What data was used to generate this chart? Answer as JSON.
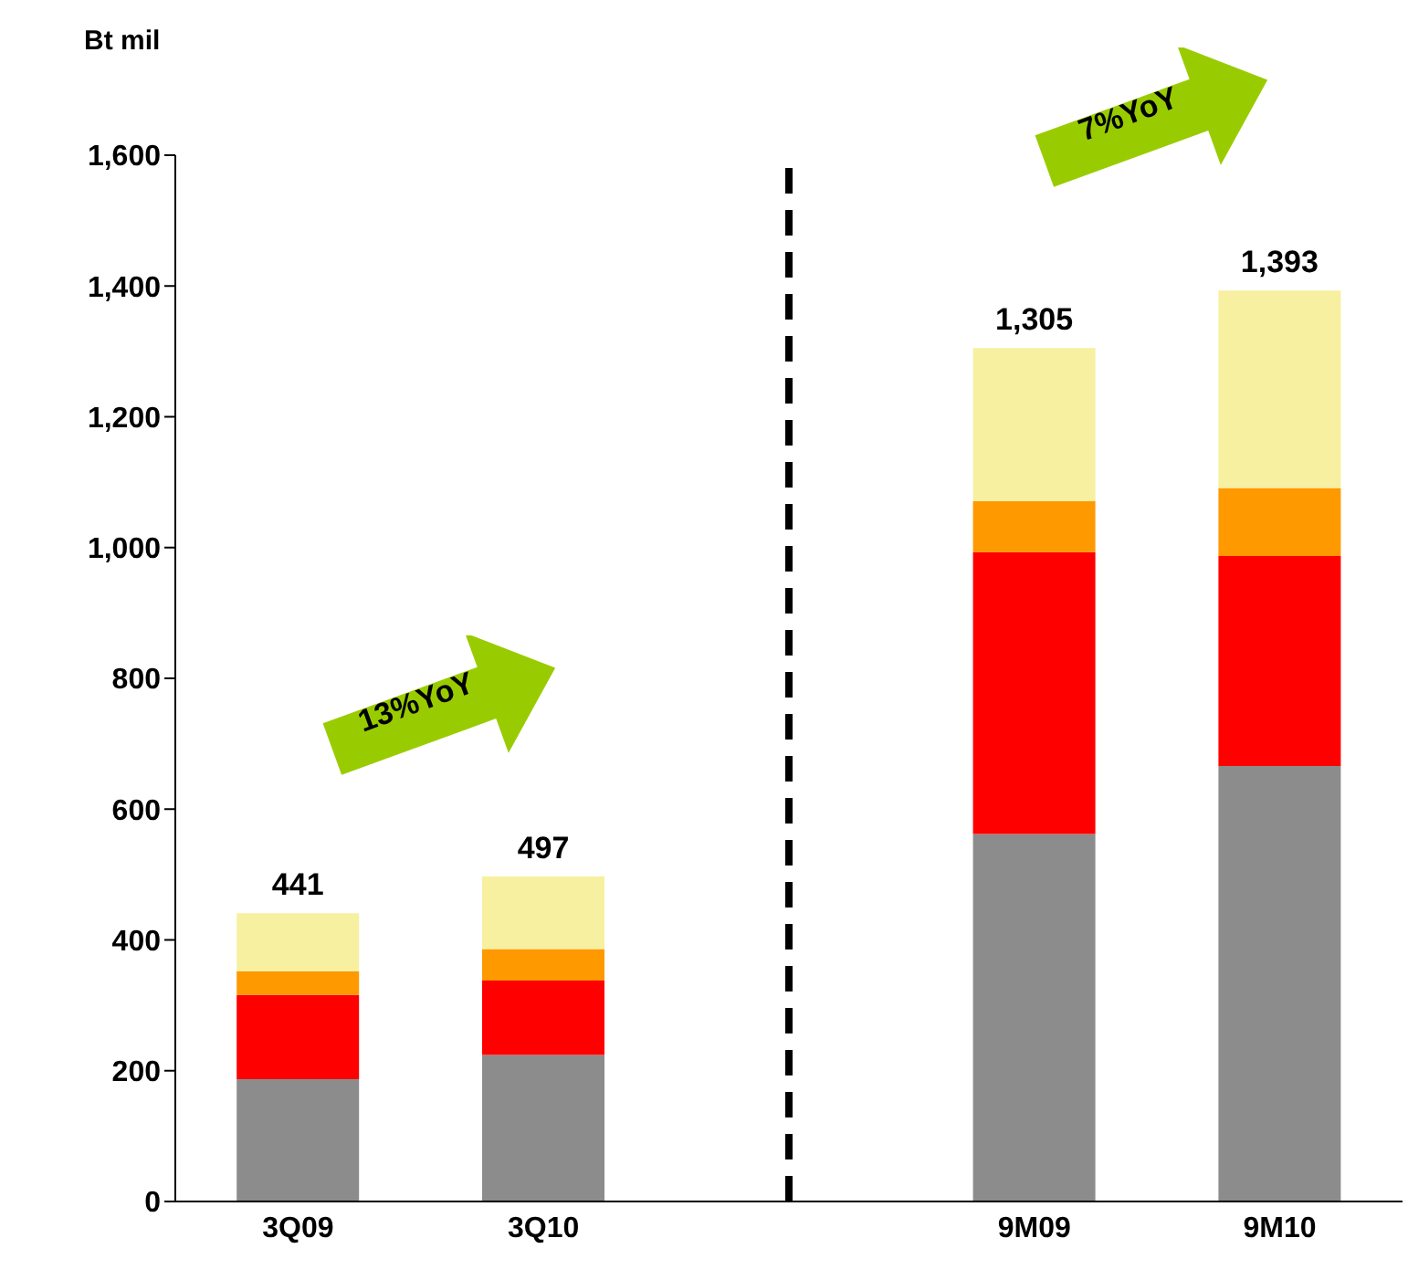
{
  "chart_data": {
    "type": "bar",
    "stacked": true,
    "ylabel": "Bt mil",
    "categories": [
      "3Q09",
      "3Q10",
      null,
      "9M09",
      "9M10"
    ],
    "series": [
      {
        "color": "#8c8c8c",
        "values": [
          187,
          224,
          null,
          562,
          666
        ]
      },
      {
        "color": "#ff0000",
        "values": [
          129,
          114,
          null,
          431,
          321
        ]
      },
      {
        "color": "#ff9900",
        "values": [
          36,
          48,
          null,
          78,
          104
        ]
      },
      {
        "color": "#f6f0a0",
        "values": [
          89,
          111,
          null,
          234,
          302
        ]
      }
    ],
    "totals": [
      "441",
      "497",
      null,
      "1,305",
      "1,393"
    ],
    "ylim": [
      0,
      1600
    ],
    "yticks": [
      0,
      200,
      400,
      600,
      800,
      {
        "value": 1000,
        "label": "1,000"
      },
      {
        "value": 1200,
        "label": "1,200"
      },
      {
        "value": 1400,
        "label": "1,400"
      },
      {
        "value": 1600,
        "label": "1,600"
      }
    ],
    "legend": false,
    "ref_lines": [
      {
        "axis": "x",
        "value": null,
        "color": "#000000",
        "line_style": "dashed"
      }
    ],
    "annotations": [
      "13%YoY",
      "7%YoY"
    ]
  }
}
